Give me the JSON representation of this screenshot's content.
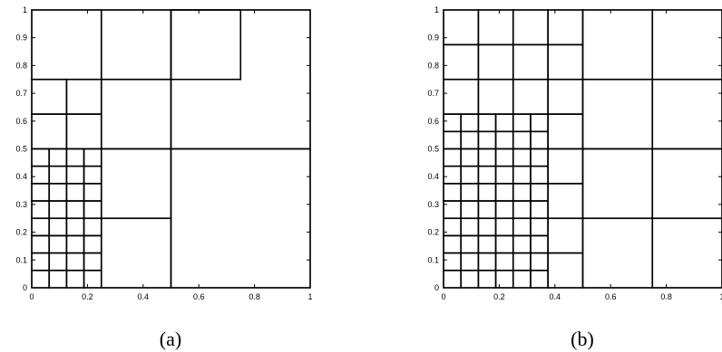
{
  "panels": [
    {
      "id": "a",
      "caption": "(a)",
      "x_ticks": [
        "0",
        "0.2",
        "0.4",
        "0.6",
        "0.8",
        "1"
      ],
      "y_ticks": [
        "0",
        "0.1",
        "0.2",
        "0.3",
        "0.4",
        "0.5",
        "0.6",
        "0.7",
        "0.8",
        "0.9",
        "1"
      ],
      "xlim": [
        0,
        1
      ],
      "ylim": [
        0,
        1
      ],
      "cells": [
        [
          0.25,
          0.75,
          0.25,
          0.25
        ],
        [
          0.5,
          0.75,
          0.25,
          0.25
        ],
        [
          0.25,
          0.5,
          0.25,
          0.25
        ],
        [
          0.25,
          0.25,
          0.25,
          0.25
        ],
        [
          0.25,
          0,
          0.25,
          0.25
        ],
        [
          0.5,
          0.5,
          0.5,
          0.5
        ],
        [
          0.5,
          0,
          0.5,
          0.5
        ],
        [
          0,
          0.75,
          0.25,
          0.25
        ],
        [
          0,
          0.625,
          0.125,
          0.125
        ],
        [
          0.125,
          0.625,
          0.125,
          0.125
        ],
        [
          0,
          0.5,
          0.125,
          0.125
        ],
        [
          0.125,
          0.5,
          0.125,
          0.125
        ],
        {
          "grid": [
            0,
            0,
            0.25,
            0.5,
            0.0625
          ]
        }
      ]
    },
    {
      "id": "b",
      "caption": "(b)",
      "x_ticks": [
        "0",
        "0.2",
        "0.4",
        "0.6",
        "0.8",
        "1"
      ],
      "y_ticks": [
        "0",
        "0.1",
        "0.2",
        "0.3",
        "0.4",
        "0.5",
        "0.6",
        "0.7",
        "0.8",
        "0.9",
        "1"
      ],
      "xlim": [
        0,
        1
      ],
      "ylim": [
        0,
        1
      ],
      "cells": [
        {
          "grid": [
            0.5,
            0,
            0.5,
            1,
            0.25
          ]
        },
        {
          "grid": [
            0,
            0.75,
            0.5,
            0.25,
            0.125
          ]
        },
        {
          "grid": [
            0,
            0.625,
            0.5,
            0.125,
            0.125
          ]
        },
        {
          "grid": [
            0.375,
            0,
            0.125,
            0.625,
            0.125
          ]
        },
        {
          "grid": [
            0,
            0,
            0.375,
            0.625,
            0.0625
          ]
        }
      ]
    }
  ]
}
